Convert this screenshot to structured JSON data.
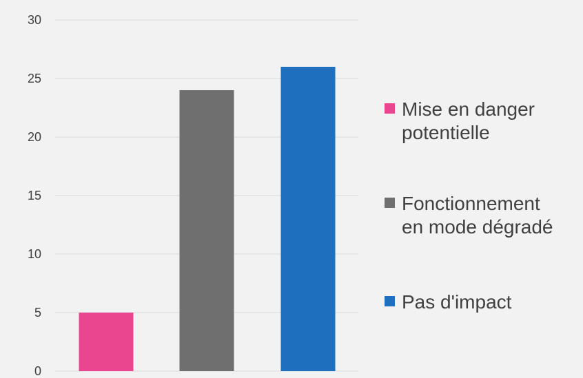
{
  "chart_data": {
    "type": "bar",
    "title": "",
    "xlabel": "",
    "ylabel": "",
    "ylim": [
      0,
      30
    ],
    "yticks": [
      "0",
      "5",
      "10",
      "15",
      "20",
      "25",
      "30"
    ],
    "grid": true,
    "legend_position": "right",
    "series": [
      {
        "name": "Mise en danger potentielle",
        "legend_lines": [
          "Mise en danger",
          "potentielle"
        ],
        "value": 5,
        "color": "#ea4690"
      },
      {
        "name": "Fonctionnement en mode dégradé",
        "legend_lines": [
          "Fonctionnement",
          "en mode dégradé"
        ],
        "value": 24,
        "color": "#6f6f6f"
      },
      {
        "name": "Pas d'impact",
        "legend_lines": [
          "Pas d'impact"
        ],
        "value": 26,
        "color": "#1f6fbf"
      }
    ]
  }
}
